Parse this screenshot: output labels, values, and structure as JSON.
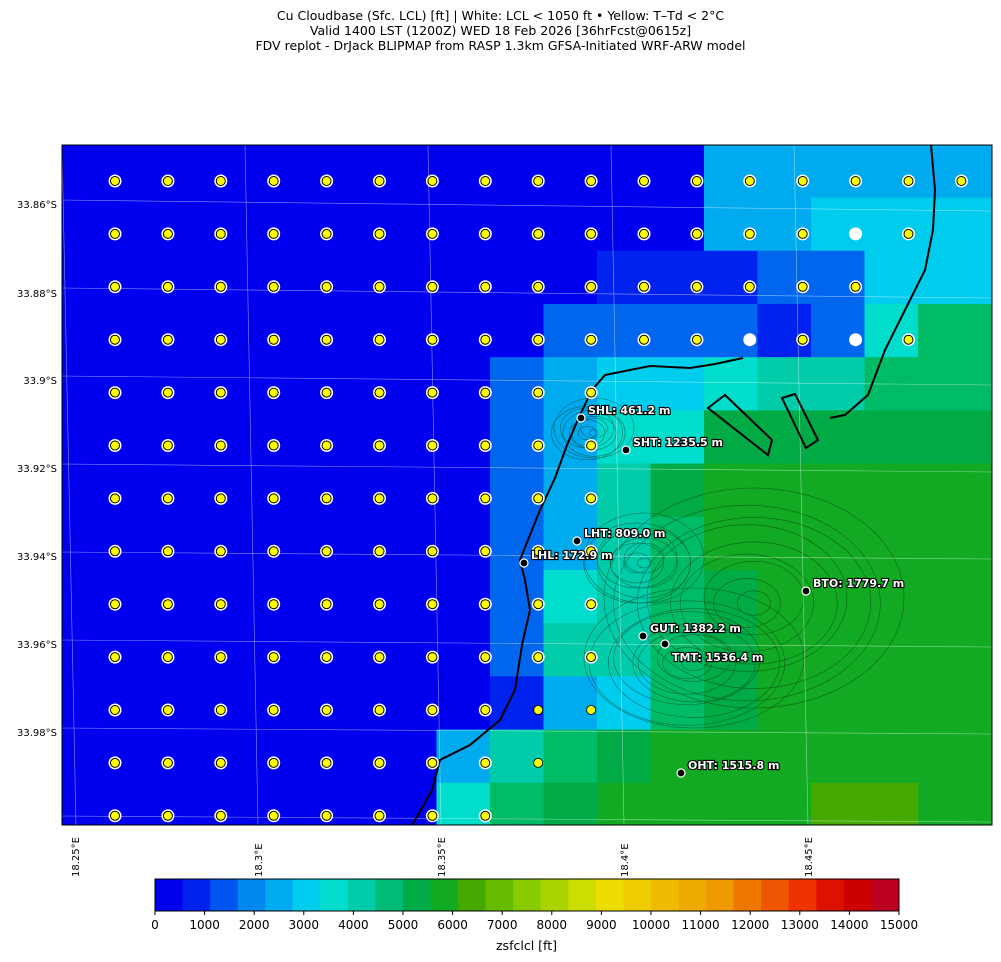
{
  "title": {
    "line1": "Cu Cloudbase (Sfc. LCL) [ft]  |  White: LCL < 1050 ft • Yellow: T–Td < 2°C",
    "line2": "Valid 1400 LST (1200Z) WED 18 Feb 2026 [36hrFcst@0615z]",
    "line3": "FDV replot - DrJack BLIPMAP from RASP 1.3km GFSA-Initiated WRF-ARW model"
  },
  "map": {
    "lat_labels": [
      "33.86°S",
      "33.88°S",
      "33.9°S",
      "33.92°S",
      "33.94°S",
      "33.96°S",
      "33.98°S"
    ],
    "lon_labels": [
      "18.25°E",
      "18.3°E",
      "18.35°E",
      "18.4°E",
      "18.45°E"
    ],
    "stations": [
      {
        "label": "SHL: 461.2 m"
      },
      {
        "label": "SHT: 1235.5 m"
      },
      {
        "label": "LHT: 809.0 m"
      },
      {
        "label": "LHL: 172.9 m"
      },
      {
        "label": "BTO: 1779.7 m"
      },
      {
        "label": "GUT: 1382.2 m"
      },
      {
        "label": "TMT: 1536.4 m"
      },
      {
        "label": "OHT: 1515.8 m"
      }
    ],
    "field_level_grid": [
      "00000000000033333",
      "00000000000033444",
      "00000000001112244",
      "00000000022221257",
      "00000000234456677",
      "00000000235588888",
      "00000000236899999",
      "00000000236799999",
      "00000000256789999",
      "00000000266789999",
      "00000000134789999",
      "00000003678999999",
      "00000005789999AA9"
    ],
    "marker_grid": [
      "YYYYYYYYYYYYYYYYY",
      "YYYYYYYYYYYYYYWY.",
      "YYYYYYYYYYYYYYY..",
      "YYYYYYYYYYYYWYWY.",
      "YYYYYYYYYY.......",
      "YYYYYYYYYY.......",
      "YYYYYYYYYY.......",
      "YYYYYYYYYY.......",
      "YYYYYYYYYY.......",
      "YYYYYYYYYY.......",
      "YYYYYYYYyy.......",
      "YYYYYYYYy........",
      "YYYYYYYY........."
    ],
    "marker_colors": {
      "yellow": "#ffff00",
      "white": "#ffffff"
    }
  },
  "colorbar": {
    "label": "zsfclcl [ft]",
    "ticks": [
      "0",
      "1000",
      "2000",
      "3000",
      "4000",
      "5000",
      "6000",
      "7000",
      "8000",
      "9000",
      "10000",
      "11000",
      "12000",
      "13000",
      "14000",
      "15000"
    ],
    "colors": [
      "#0000ee",
      "#0022ee",
      "#0055ee",
      "#0088ee",
      "#00aaee",
      "#00ccee",
      "#00ddcc",
      "#00ccaa",
      "#00bb77",
      "#00aa44",
      "#11aa22",
      "#44aa00",
      "#66bb00",
      "#88cc00",
      "#aad400",
      "#ccdd00",
      "#eedd00",
      "#eecc00",
      "#eebb00",
      "#eeaa00",
      "#ee9900",
      "#ee7700",
      "#ee5500",
      "#ee3300",
      "#dd1100",
      "#cc0000",
      "#bb0022"
    ]
  }
}
